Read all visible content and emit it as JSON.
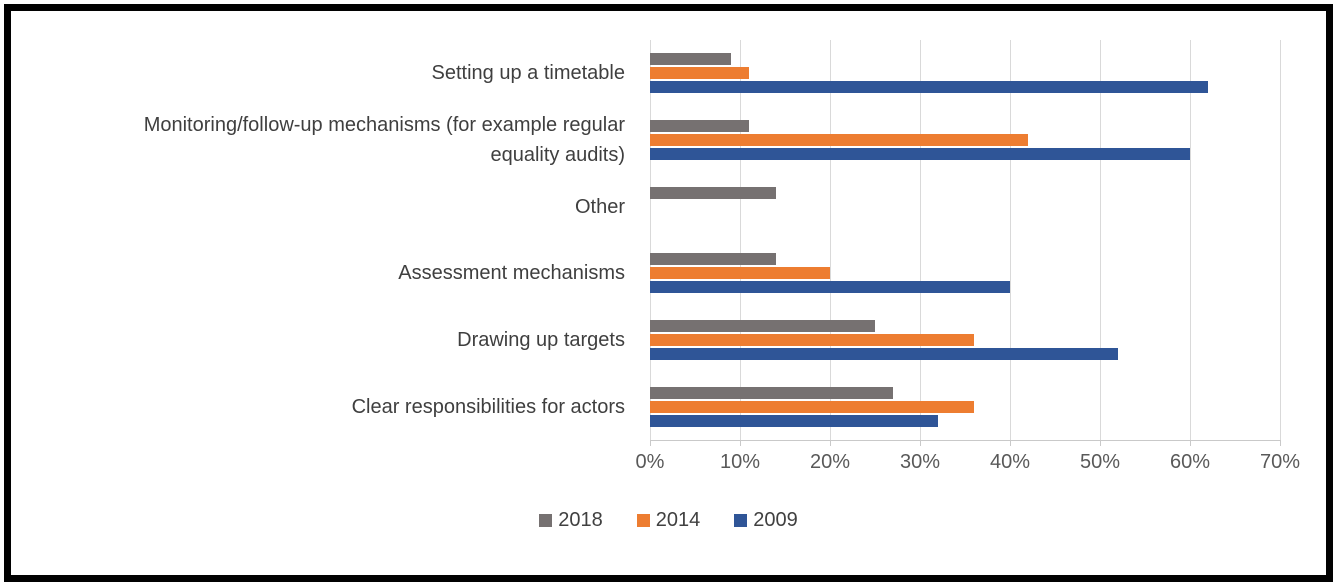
{
  "chart_data": {
    "type": "bar",
    "orientation": "horizontal",
    "title": "",
    "categories": [
      "Setting up a timetable",
      "Monitoring/follow-up mechanisms (for example regular equality audits)",
      "Other",
      "Assessment mechanisms",
      "Drawing up targets",
      "Clear responsibilities for actors"
    ],
    "series": [
      {
        "name": "2018",
        "color": "#767171",
        "values": [
          9,
          11,
          14,
          14,
          25,
          27
        ]
      },
      {
        "name": "2014",
        "color": "#ED7D31",
        "values": [
          11,
          42,
          0,
          20,
          36,
          36
        ]
      },
      {
        "name": "2009",
        "color": "#2F5597",
        "values": [
          62,
          60,
          0,
          40,
          52,
          32
        ]
      }
    ],
    "x_ticks": [
      "0%",
      "10%",
      "20%",
      "30%",
      "40%",
      "50%",
      "60%",
      "70%"
    ],
    "xlim": [
      0,
      70
    ],
    "grid": true,
    "legend_position": "bottom",
    "legend_labels": [
      "2018",
      "2014",
      "2009"
    ],
    "value_unit": "%"
  },
  "palette": {
    "gridline": "#D9D9D9",
    "axis_line": "#C9C9C9",
    "category_text": "#3F3F3F",
    "axis_text": "#595959",
    "legend_text": "#404040",
    "frame_border": "#010101"
  }
}
